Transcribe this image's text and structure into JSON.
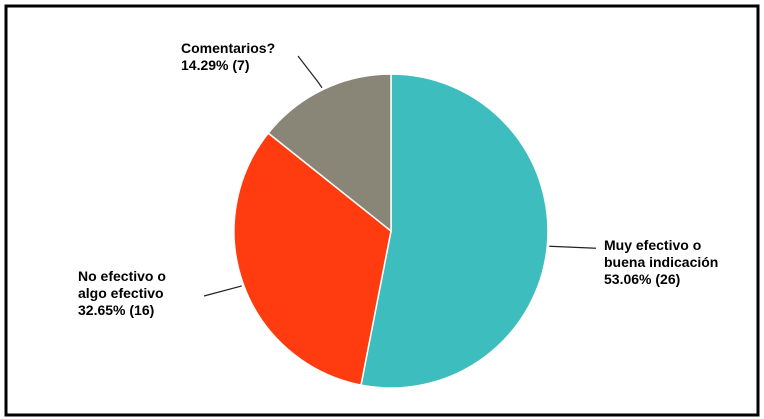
{
  "chart_data": {
    "type": "pie",
    "title": "",
    "start_angle_deg": 0,
    "direction": "clockwise",
    "slices": [
      {
        "name": "Muy efectivo o buena indicación",
        "value": 26,
        "percent": 53.06,
        "color": "#3dbdbd",
        "label_lines": [
          "Muy efectivo o",
          "buena indicación",
          "53.06% (26)"
        ],
        "label_side": "right"
      },
      {
        "name": "No efectivo o algo efectivo",
        "value": 16,
        "percent": 32.65,
        "color": "#ff3b0f",
        "label_lines": [
          "No efectivo o",
          "algo efectivo",
          "32.65% (16)"
        ],
        "label_side": "left"
      },
      {
        "name": "Comentarios?",
        "value": 7,
        "percent": 14.29,
        "color": "#898677",
        "label_lines": [
          "Comentarios?",
          "14.29% (7)"
        ],
        "label_side": "top-left"
      }
    ]
  }
}
